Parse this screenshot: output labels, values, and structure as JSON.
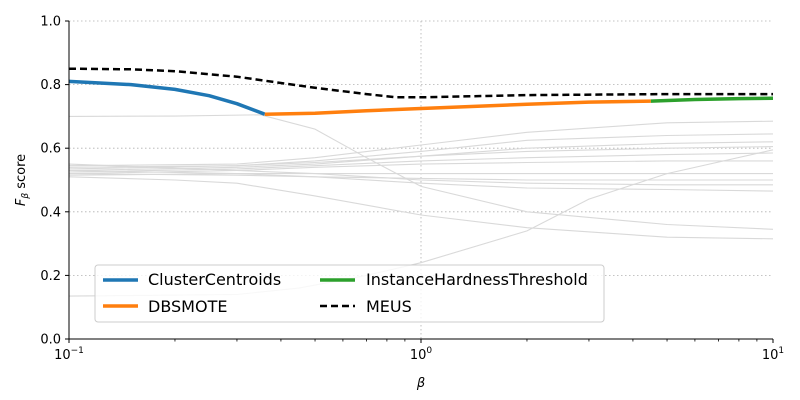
{
  "chart_data": {
    "type": "line",
    "title": "",
    "xlabel": "β",
    "ylabel": "F",
    "ylabel_sub": "β",
    "ylabel_suffix": " score",
    "xscale": "log",
    "xlim": [
      0.1,
      10
    ],
    "ylim": [
      0.0,
      1.0
    ],
    "grid": "dotted, at x = 1 and y ticks",
    "xticks": [
      {
        "value": 0.1,
        "base": "10",
        "exp": "−1"
      },
      {
        "value": 1,
        "base": "10",
        "exp": "0"
      },
      {
        "value": 10,
        "base": "10",
        "exp": "1"
      }
    ],
    "yticks": [
      {
        "value": 0.0,
        "label": "0.0"
      },
      {
        "value": 0.2,
        "label": "0.2"
      },
      {
        "value": 0.4,
        "label": "0.4"
      },
      {
        "value": 0.6,
        "label": "0.6"
      },
      {
        "value": 0.8,
        "label": "0.8"
      },
      {
        "value": 1.0,
        "label": "1.0"
      }
    ],
    "legend": {
      "placement": "lower-left",
      "entries": [
        {
          "label": "ClusterCentroids",
          "color": "#1f77b4",
          "style": "solid"
        },
        {
          "label": "DBSMOTE",
          "color": "#ff7f0e",
          "style": "solid"
        },
        {
          "label": "InstanceHardnessThreshold",
          "color": "#2ca02c",
          "style": "solid"
        },
        {
          "label": "MEUS",
          "color": "#000000",
          "style": "dashed"
        }
      ]
    },
    "background_color": "#d9d9d9",
    "background_series": [
      {
        "points": [
          [
            0.1,
            0.7
          ],
          [
            0.2,
            0.701
          ],
          [
            0.35,
            0.705
          ],
          [
            0.5,
            0.66
          ],
          [
            0.7,
            0.57
          ],
          [
            1,
            0.48
          ],
          [
            2,
            0.4
          ],
          [
            5,
            0.36
          ],
          [
            10,
            0.345
          ]
        ]
      },
      {
        "points": [
          [
            0.1,
            0.51
          ],
          [
            0.2,
            0.5
          ],
          [
            0.3,
            0.49
          ],
          [
            0.5,
            0.45
          ],
          [
            1,
            0.39
          ],
          [
            2,
            0.35
          ],
          [
            5,
            0.32
          ],
          [
            10,
            0.315
          ]
        ]
      },
      {
        "points": [
          [
            0.1,
            0.545
          ],
          [
            0.3,
            0.55
          ],
          [
            0.5,
            0.57
          ],
          [
            1,
            0.61
          ],
          [
            2,
            0.65
          ],
          [
            5,
            0.68
          ],
          [
            10,
            0.685
          ]
        ]
      },
      {
        "points": [
          [
            0.1,
            0.535
          ],
          [
            0.3,
            0.545
          ],
          [
            0.5,
            0.56
          ],
          [
            1,
            0.59
          ],
          [
            2,
            0.625
          ],
          [
            5,
            0.64
          ],
          [
            10,
            0.645
          ]
        ]
      },
      {
        "points": [
          [
            0.1,
            0.53
          ],
          [
            0.3,
            0.54
          ],
          [
            0.5,
            0.55
          ],
          [
            1,
            0.575
          ],
          [
            2,
            0.6
          ],
          [
            5,
            0.615
          ],
          [
            10,
            0.62
          ]
        ]
      },
      {
        "points": [
          [
            0.1,
            0.525
          ],
          [
            0.3,
            0.535
          ],
          [
            0.5,
            0.545
          ],
          [
            1,
            0.56
          ],
          [
            2,
            0.57
          ],
          [
            5,
            0.58
          ],
          [
            10,
            0.585
          ]
        ]
      },
      {
        "points": [
          [
            0.1,
            0.52
          ],
          [
            0.3,
            0.53
          ],
          [
            0.5,
            0.54
          ],
          [
            1,
            0.55
          ],
          [
            2,
            0.555
          ],
          [
            5,
            0.56
          ],
          [
            10,
            0.56
          ]
        ]
      },
      {
        "points": [
          [
            0.1,
            0.515
          ],
          [
            0.3,
            0.52
          ],
          [
            0.5,
            0.52
          ],
          [
            1,
            0.52
          ],
          [
            2,
            0.52
          ],
          [
            5,
            0.52
          ],
          [
            10,
            0.52
          ]
        ]
      },
      {
        "points": [
          [
            0.1,
            0.55
          ],
          [
            0.3,
            0.53
          ],
          [
            0.5,
            0.52
          ],
          [
            1,
            0.5
          ],
          [
            2,
            0.49
          ],
          [
            5,
            0.485
          ],
          [
            10,
            0.485
          ]
        ]
      },
      {
        "points": [
          [
            0.1,
            0.53
          ],
          [
            0.3,
            0.52
          ],
          [
            0.5,
            0.51
          ],
          [
            1,
            0.49
          ],
          [
            2,
            0.475
          ],
          [
            5,
            0.47
          ],
          [
            10,
            0.465
          ]
        ]
      },
      {
        "points": [
          [
            0.1,
            0.52
          ],
          [
            0.3,
            0.515
          ],
          [
            0.5,
            0.51
          ],
          [
            1,
            0.505
          ],
          [
            2,
            0.5
          ],
          [
            5,
            0.5
          ],
          [
            10,
            0.5
          ]
        ]
      },
      {
        "points": [
          [
            0.1,
            0.54
          ],
          [
            0.3,
            0.545
          ],
          [
            0.5,
            0.555
          ],
          [
            1,
            0.575
          ],
          [
            2,
            0.59
          ],
          [
            5,
            0.6
          ],
          [
            10,
            0.605
          ]
        ]
      },
      {
        "points": [
          [
            0.1,
            0.135
          ],
          [
            0.3,
            0.14
          ],
          [
            0.45,
            0.16
          ],
          [
            0.7,
            0.2
          ],
          [
            1,
            0.24
          ],
          [
            2,
            0.34
          ],
          [
            3,
            0.44
          ],
          [
            5,
            0.52
          ],
          [
            10,
            0.595
          ]
        ]
      }
    ],
    "series": [
      {
        "name": "ClusterCentroids",
        "color": "#1f77b4",
        "points": [
          [
            0.1,
            0.81
          ],
          [
            0.15,
            0.8
          ],
          [
            0.2,
            0.785
          ],
          [
            0.25,
            0.765
          ],
          [
            0.3,
            0.74
          ],
          [
            0.36,
            0.707
          ]
        ]
      },
      {
        "name": "DBSMOTE",
        "color": "#ff7f0e",
        "points": [
          [
            0.36,
            0.707
          ],
          [
            0.5,
            0.71
          ],
          [
            0.7,
            0.718
          ],
          [
            1,
            0.725
          ],
          [
            2,
            0.738
          ],
          [
            3,
            0.745
          ],
          [
            4.5,
            0.748
          ]
        ]
      },
      {
        "name": "InstanceHardnessThreshold",
        "color": "#2ca02c",
        "points": [
          [
            4.5,
            0.748
          ],
          [
            6,
            0.753
          ],
          [
            8,
            0.756
          ],
          [
            10,
            0.757
          ]
        ]
      },
      {
        "name": "MEUS",
        "color": "#000000",
        "dashed": true,
        "points": [
          [
            0.1,
            0.85
          ],
          [
            0.15,
            0.848
          ],
          [
            0.2,
            0.842
          ],
          [
            0.3,
            0.825
          ],
          [
            0.4,
            0.805
          ],
          [
            0.5,
            0.79
          ],
          [
            0.7,
            0.77
          ],
          [
            0.85,
            0.76
          ],
          [
            1,
            0.76
          ],
          [
            2,
            0.767
          ],
          [
            5,
            0.77
          ],
          [
            10,
            0.77
          ]
        ]
      }
    ]
  }
}
